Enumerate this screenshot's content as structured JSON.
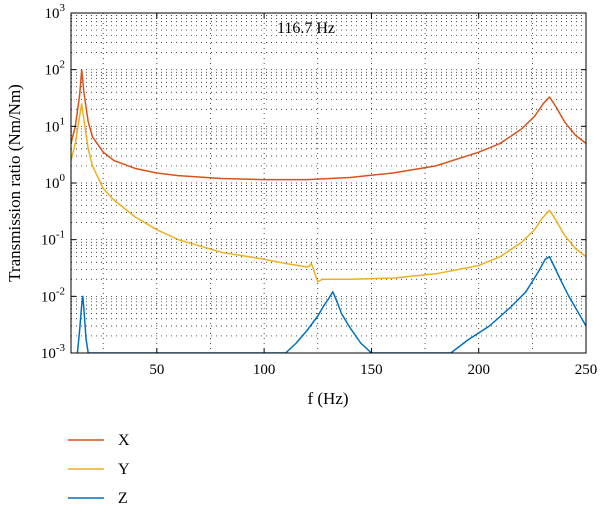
{
  "chart_data": {
    "type": "line",
    "title": "",
    "xlabel": "f (Hz)",
    "ylabel": "Transmission ratio (Nm/Nm)",
    "xlim": [
      10,
      250
    ],
    "ylim": [
      0.001,
      1000
    ],
    "yscale": "log",
    "grid": "dotted",
    "legend_position": "below",
    "annotation": "116.7 Hz",
    "x_ticks": [
      50,
      100,
      150,
      200,
      250
    ],
    "x_tick_labels": [
      "50",
      "100",
      "150",
      "200",
      "250"
    ],
    "y_ticks": [
      0.001,
      0.01,
      0.1,
      1,
      10,
      100,
      1000
    ],
    "y_tick_labels": [
      {
        "base": "10",
        "exp": "-3"
      },
      {
        "base": "10",
        "exp": "-2"
      },
      {
        "base": "10",
        "exp": "-1"
      },
      {
        "base": "10",
        "exp": "0"
      },
      {
        "base": "10",
        "exp": "1"
      },
      {
        "base": "10",
        "exp": "2"
      },
      {
        "base": "10",
        "exp": "3"
      }
    ],
    "series": [
      {
        "name": "X",
        "color": "#d95319",
        "x": [
          10,
          12,
          14,
          15,
          16,
          18,
          20,
          25,
          30,
          40,
          50,
          60,
          80,
          100,
          120,
          140,
          160,
          180,
          200,
          210,
          220,
          226,
          230,
          233,
          236,
          240,
          245,
          250
        ],
        "y": [
          5,
          10,
          35,
          100,
          40,
          12,
          6.5,
          3.5,
          2.5,
          1.8,
          1.5,
          1.35,
          1.2,
          1.15,
          1.15,
          1.25,
          1.5,
          2.0,
          3.5,
          5,
          9,
          15,
          25,
          33,
          22,
          12,
          7,
          5
        ]
      },
      {
        "name": "Y",
        "color": "#edb120",
        "x": [
          10,
          12,
          14,
          15,
          16,
          18,
          20,
          25,
          30,
          40,
          50,
          60,
          80,
          100,
          110,
          118,
          120,
          121,
          122,
          123,
          124,
          125,
          127,
          130,
          140,
          160,
          180,
          200,
          210,
          220,
          226,
          230,
          233,
          236,
          240,
          245,
          250
        ],
        "y": [
          2.5,
          5,
          15,
          25,
          13,
          4,
          2,
          0.8,
          0.5,
          0.25,
          0.15,
          0.1,
          0.06,
          0.045,
          0.038,
          0.034,
          0.033,
          0.034,
          0.038,
          0.03,
          0.023,
          0.018,
          0.02,
          0.02,
          0.02,
          0.021,
          0.025,
          0.035,
          0.05,
          0.09,
          0.15,
          0.25,
          0.33,
          0.22,
          0.12,
          0.07,
          0.05
        ]
      },
      {
        "name": "Z",
        "color": "#0072bd",
        "x": [
          13,
          14,
          15,
          15.5,
          16,
          17,
          18,
          110,
          115,
          120,
          125,
          128,
          130,
          132,
          134,
          136,
          140,
          145,
          150,
          187,
          195,
          205,
          215,
          222,
          228,
          231,
          233,
          235,
          238,
          242,
          246,
          250
        ],
        "y": [
          0.001,
          0.0025,
          0.007,
          0.01,
          0.006,
          0.0018,
          0.001,
          0.001,
          0.0015,
          0.0025,
          0.0045,
          0.007,
          0.009,
          0.012,
          0.008,
          0.005,
          0.0028,
          0.0015,
          0.001,
          0.001,
          0.0017,
          0.003,
          0.0065,
          0.012,
          0.028,
          0.045,
          0.05,
          0.035,
          0.02,
          0.01,
          0.0055,
          0.003
        ]
      }
    ]
  }
}
